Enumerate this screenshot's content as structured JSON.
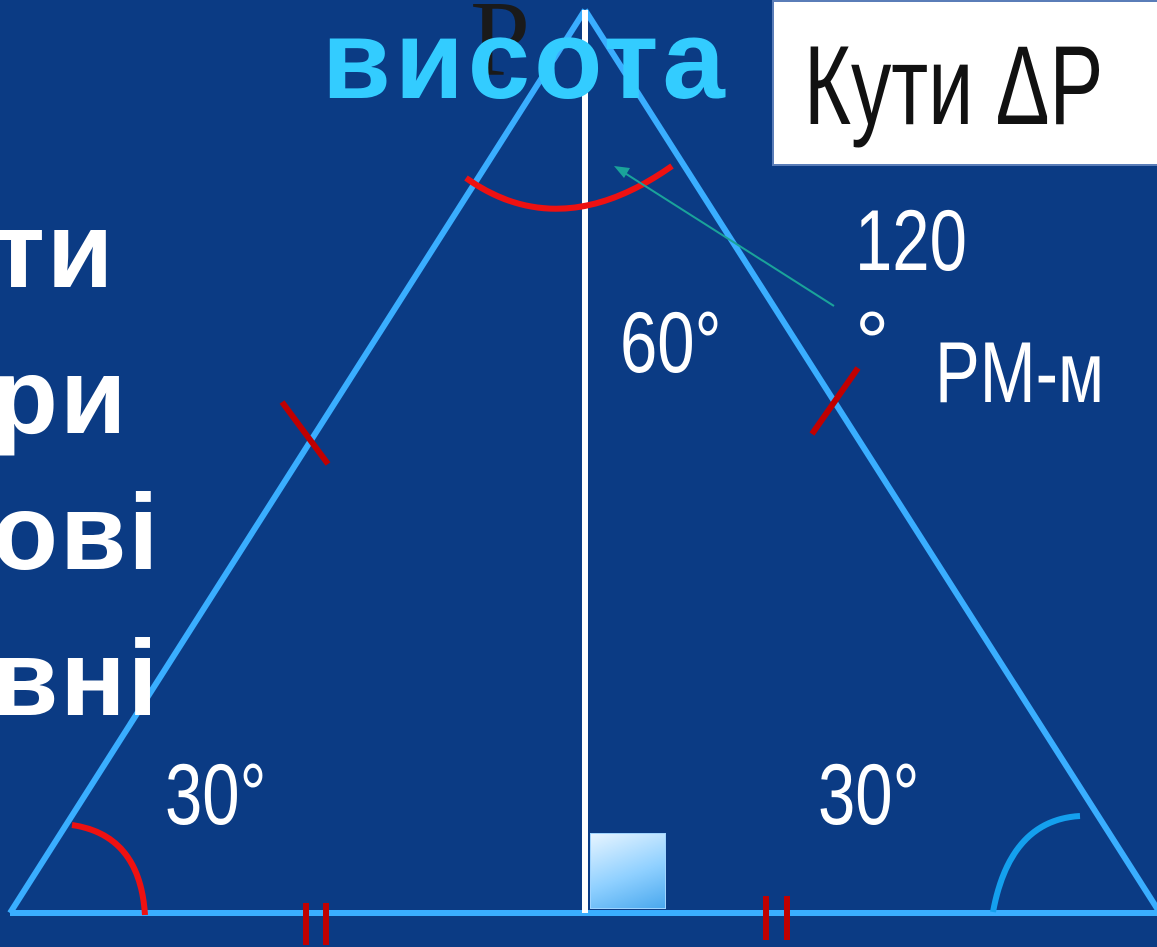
{
  "slide": {
    "background": "#0b3b84",
    "left_text_fragments": [
      "ти",
      "ри",
      "ові",
      "вні"
    ],
    "title_box_text": "Кути ΔP",
    "overlay_label": "висота",
    "vertex_label": "P",
    "angle_labels": {
      "top_right": "60°",
      "exterior_value": "120",
      "exterior_degree": "°",
      "bottom_left": "30°",
      "bottom_right": "30°"
    },
    "median_label": "PM-м"
  },
  "colors": {
    "triangle_sides": "#3aaeff",
    "height_line": "#ffffff",
    "arc_red": "#ee1111",
    "arc_blue": "#14a0ee",
    "tick_marks": "#c00000",
    "pointer_arrow": "#1aa39a",
    "overlay_text": "#33ccff"
  },
  "icons": {
    "right_angle": "square-right-angle-icon"
  }
}
